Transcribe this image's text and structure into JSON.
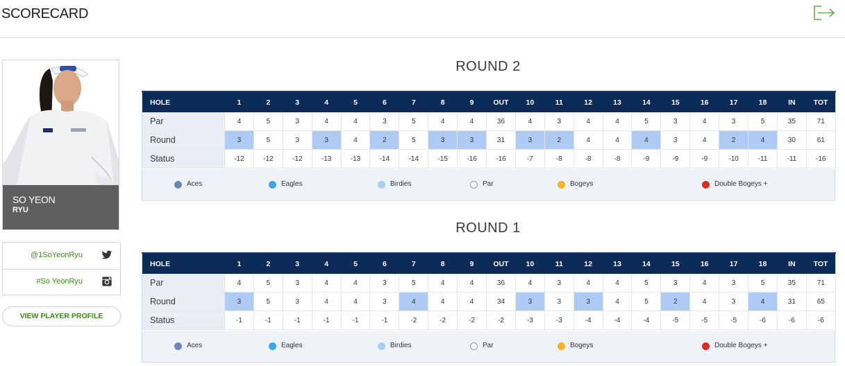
{
  "header": {
    "title": "SCORECARD",
    "exit_icon": "exit-icon"
  },
  "player": {
    "first_name": "SO YEON",
    "last_name": "RYU"
  },
  "social": {
    "twitter": {
      "handle": "@1SoYeonRyu",
      "icon": "twitter-icon"
    },
    "instagram": {
      "handle": "#So YeonRyu",
      "icon": "instagram-icon"
    }
  },
  "profile_button": "VIEW PLAYER PROFILE",
  "columns": [
    "HOLE",
    "1",
    "2",
    "3",
    "4",
    "5",
    "6",
    "7",
    "8",
    "9",
    "OUT",
    "10",
    "11",
    "12",
    "13",
    "14",
    "15",
    "16",
    "17",
    "18",
    "IN",
    "TOT"
  ],
  "row_labels": {
    "par": "Par",
    "round": "Round",
    "status": "Status"
  },
  "legend": [
    {
      "label": "Aces",
      "color": "#6a8ab5",
      "border": "#6a8ab5"
    },
    {
      "label": "Eagles",
      "color": "#3aa7e6",
      "border": "#3aa7e6"
    },
    {
      "label": "Birdies",
      "color": "#a9ccf2",
      "border": "#a9ccf2"
    },
    {
      "label": "Par",
      "color": "#ffffff",
      "border": "#9a9a9a"
    },
    {
      "label": "Bogeys",
      "color": "#f2b324",
      "border": "#f2b324"
    },
    {
      "label": "Double Bogeys +",
      "color": "#e02a22",
      "border": "#e02a22"
    }
  ],
  "rounds": [
    {
      "title": "ROUND 2",
      "par": [
        "4",
        "5",
        "3",
        "4",
        "4",
        "3",
        "5",
        "4",
        "4",
        "36",
        "4",
        "3",
        "4",
        "4",
        "5",
        "3",
        "4",
        "3",
        "5",
        "35",
        "71"
      ],
      "score": [
        "3",
        "5",
        "3",
        "3",
        "4",
        "2",
        "5",
        "3",
        "3",
        "31",
        "3",
        "2",
        "4",
        "4",
        "4",
        "3",
        "4",
        "2",
        "4",
        "30",
        "61"
      ],
      "status": [
        "-12",
        "-12",
        "-12",
        "-13",
        "-13",
        "-14",
        "-14",
        "-15",
        "-16",
        "-16",
        "-7",
        "-8",
        "-8",
        "-8",
        "-9",
        "-9",
        "-9",
        "-10",
        "-11",
        "-11",
        "-16"
      ],
      "birdie_holes": [
        0,
        3,
        5,
        7,
        8,
        10,
        11,
        14,
        17,
        18
      ]
    },
    {
      "title": "ROUND 1",
      "par": [
        "4",
        "5",
        "3",
        "4",
        "4",
        "3",
        "5",
        "4",
        "4",
        "36",
        "4",
        "3",
        "4",
        "4",
        "5",
        "3",
        "4",
        "3",
        "5",
        "35",
        "71"
      ],
      "score": [
        "3",
        "5",
        "3",
        "4",
        "4",
        "3",
        "4",
        "4",
        "4",
        "34",
        "3",
        "3",
        "3",
        "4",
        "5",
        "2",
        "4",
        "3",
        "4",
        "31",
        "65"
      ],
      "status": [
        "-1",
        "-1",
        "-1",
        "-1",
        "-1",
        "-1",
        "-2",
        "-2",
        "-2",
        "-2",
        "-3",
        "-3",
        "-4",
        "-4",
        "-4",
        "-5",
        "-5",
        "-5",
        "-6",
        "-6",
        "-6"
      ],
      "birdie_holes": [
        0,
        6,
        10,
        12,
        15,
        18
      ]
    }
  ]
}
